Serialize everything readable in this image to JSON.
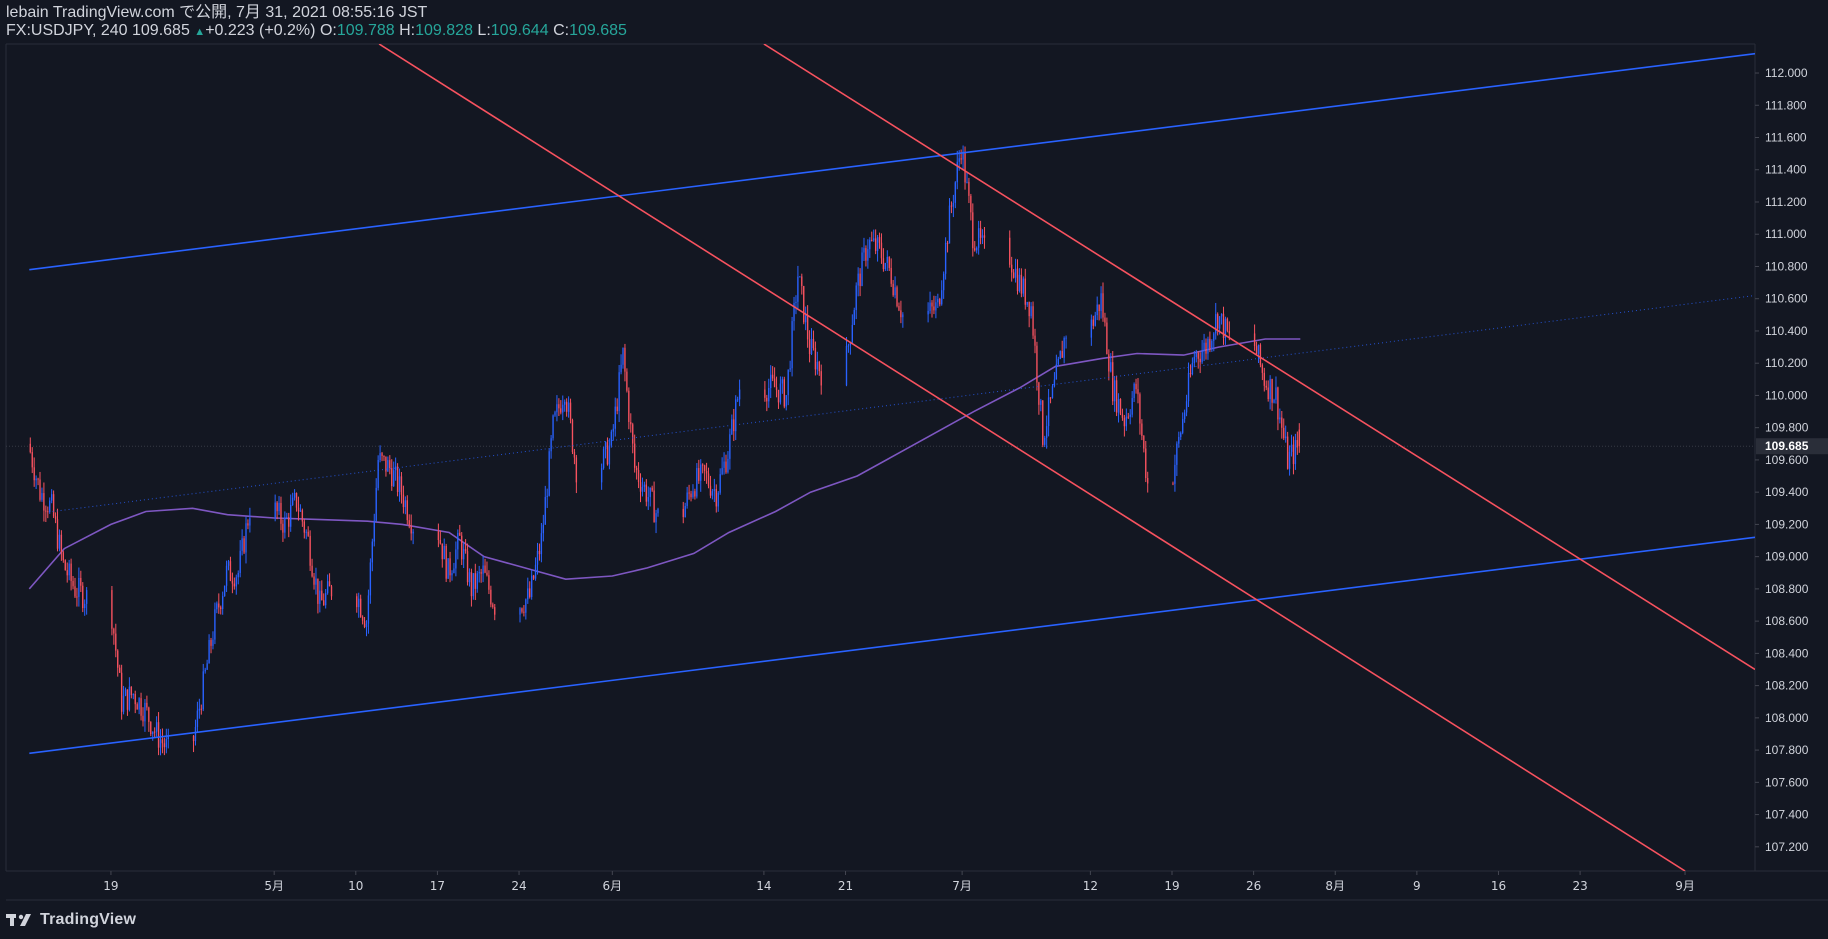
{
  "header": {
    "publish_line": "lebain TradingView.com で公開, 7月 31, 2021 08:55:16 JST",
    "symbol": "FX:USDJPY, 240",
    "last": "109.685",
    "change_arrow": "▲",
    "change": "+0.223 (+0.2%)",
    "o_label": "O:",
    "o_value": "109.788",
    "h_label": "H:",
    "h_value": "109.828",
    "l_label": "L:",
    "l_value": "109.644",
    "c_label": "C:",
    "c_value": "109.685"
  },
  "footer": {
    "logo_text": "TradingView",
    "logo_icon": "tradingview-logo-icon"
  },
  "colors": {
    "background": "#131722",
    "up_candle": "#2962ff",
    "down_candle": "#f7525f",
    "channel": "#2962ff",
    "trend_red": "#f7525f",
    "ma": "#7e57c2",
    "axis_text": "#d1d4dc",
    "price_tag_bg": "#2a2e39",
    "change_up": "#26a69a"
  },
  "chart_data": {
    "type": "candlestick",
    "timeframe": "240",
    "y_axis": {
      "range": [
        107.05,
        112.18
      ],
      "ticks": [
        "107.200",
        "107.400",
        "107.600",
        "107.800",
        "108.000",
        "108.200",
        "108.400",
        "108.600",
        "108.800",
        "109.000",
        "109.200",
        "109.400",
        "109.600",
        "109.800",
        "110.000",
        "110.200",
        "110.400",
        "110.600",
        "110.800",
        "111.000",
        "111.200",
        "111.400",
        "111.600",
        "111.800",
        "112.000"
      ],
      "current_price_label": "109.685",
      "current_price": 109.685
    },
    "x_axis": {
      "labels": [
        {
          "text": "19",
          "date": "2021-04-19"
        },
        {
          "text": "5月",
          "date": "2021-05-03"
        },
        {
          "text": "10",
          "date": "2021-05-10"
        },
        {
          "text": "17",
          "date": "2021-05-17"
        },
        {
          "text": "24",
          "date": "2021-05-24"
        },
        {
          "text": "6月",
          "date": "2021-06-01"
        },
        {
          "text": "14",
          "date": "2021-06-14"
        },
        {
          "text": "21",
          "date": "2021-06-21"
        },
        {
          "text": "7月",
          "date": "2021-07-01"
        },
        {
          "text": "12",
          "date": "2021-07-12"
        },
        {
          "text": "19",
          "date": "2021-07-19"
        },
        {
          "text": "26",
          "date": "2021-07-26"
        },
        {
          "text": "8月",
          "date": "2021-08-02"
        },
        {
          "text": "9",
          "date": "2021-08-09"
        },
        {
          "text": "16",
          "date": "2021-08-16"
        },
        {
          "text": "23",
          "date": "2021-08-23"
        },
        {
          "text": "9月",
          "date": "2021-09-01"
        }
      ]
    },
    "price_path": [
      [
        "2021-04-12",
        109.7
      ],
      [
        "2021-04-13",
        109.4
      ],
      [
        "2021-04-14",
        109.3
      ],
      [
        "2021-04-15",
        108.95
      ],
      [
        "2021-04-16",
        108.8
      ],
      [
        "2021-04-19",
        108.75
      ],
      [
        "2021-04-20",
        108.1
      ],
      [
        "2021-04-21",
        108.15
      ],
      [
        "2021-04-22",
        108.05
      ],
      [
        "2021-04-23",
        107.9
      ],
      [
        "2021-04-26",
        107.8
      ],
      [
        "2021-04-27",
        108.2
      ],
      [
        "2021-04-28",
        108.6
      ],
      [
        "2021-04-29",
        108.9
      ],
      [
        "2021-04-30",
        108.9
      ],
      [
        "2021-05-03",
        109.3
      ],
      [
        "2021-05-04",
        109.2
      ],
      [
        "2021-05-05",
        109.35
      ],
      [
        "2021-05-06",
        109.1
      ],
      [
        "2021-05-07",
        108.7
      ],
      [
        "2021-05-10",
        108.8
      ],
      [
        "2021-05-11",
        108.6
      ],
      [
        "2021-05-12",
        109.6
      ],
      [
        "2021-05-13",
        109.55
      ],
      [
        "2021-05-14",
        109.4
      ],
      [
        "2021-05-17",
        109.2
      ],
      [
        "2021-05-18",
        108.9
      ],
      [
        "2021-05-19",
        109.1
      ],
      [
        "2021-05-20",
        108.8
      ],
      [
        "2021-05-21",
        108.9
      ],
      [
        "2021-05-24",
        108.7
      ],
      [
        "2021-05-25",
        108.75
      ],
      [
        "2021-05-26",
        109.1
      ],
      [
        "2021-05-27",
        109.8
      ],
      [
        "2021-05-28",
        110.05
      ],
      [
        "2021-05-31",
        109.55
      ],
      [
        "2021-06-01",
        109.7
      ],
      [
        "2021-06-02",
        110.25
      ],
      [
        "2021-06-03",
        109.55
      ],
      [
        "2021-06-04",
        109.4
      ],
      [
        "2021-06-07",
        109.25
      ],
      [
        "2021-06-08",
        109.45
      ],
      [
        "2021-06-09",
        109.5
      ],
      [
        "2021-06-10",
        109.4
      ],
      [
        "2021-06-11",
        109.65
      ],
      [
        "2021-06-14",
        110.05
      ],
      [
        "2021-06-15",
        110.05
      ],
      [
        "2021-06-16",
        110.0
      ],
      [
        "2021-06-17",
        110.75
      ],
      [
        "2021-06-18",
        110.3
      ],
      [
        "2021-06-21",
        110.15
      ],
      [
        "2021-06-22",
        110.65
      ],
      [
        "2021-06-23",
        110.95
      ],
      [
        "2021-06-24",
        110.9
      ],
      [
        "2021-06-25",
        110.75
      ],
      [
        "2021-06-28",
        110.5
      ],
      [
        "2021-06-29",
        110.55
      ],
      [
        "2021-06-30",
        111.1
      ],
      [
        "2021-07-01",
        111.55
      ],
      [
        "2021-07-02",
        111.0
      ],
      [
        "2021-07-05",
        110.9
      ],
      [
        "2021-07-06",
        110.7
      ],
      [
        "2021-07-07",
        110.55
      ],
      [
        "2021-07-08",
        109.75
      ],
      [
        "2021-07-09",
        110.05
      ],
      [
        "2021-07-12",
        110.4
      ],
      [
        "2021-07-13",
        110.6
      ],
      [
        "2021-07-14",
        110.05
      ],
      [
        "2021-07-15",
        109.85
      ],
      [
        "2021-07-16",
        110.05
      ],
      [
        "2021-07-19",
        109.45
      ],
      [
        "2021-07-20",
        109.85
      ],
      [
        "2021-07-21",
        110.25
      ],
      [
        "2021-07-22",
        110.3
      ],
      [
        "2021-07-23",
        110.5
      ],
      [
        "2021-07-26",
        110.35
      ],
      [
        "2021-07-27",
        110.1
      ],
      [
        "2021-07-28",
        110.0
      ],
      [
        "2021-07-29",
        109.6
      ],
      [
        "2021-07-30",
        109.685
      ]
    ],
    "moving_average": [
      [
        "2021-04-12",
        108.8
      ],
      [
        "2021-04-15",
        109.05
      ],
      [
        "2021-04-19",
        109.2
      ],
      [
        "2021-04-22",
        109.28
      ],
      [
        "2021-04-26",
        109.3
      ],
      [
        "2021-04-29",
        109.26
      ],
      [
        "2021-05-03",
        109.24
      ],
      [
        "2021-05-07",
        109.23
      ],
      [
        "2021-05-11",
        109.22
      ],
      [
        "2021-05-14",
        109.2
      ],
      [
        "2021-05-18",
        109.15
      ],
      [
        "2021-05-21",
        109.0
      ],
      [
        "2021-05-25",
        108.92
      ],
      [
        "2021-05-28",
        108.86
      ],
      [
        "2021-06-01",
        108.88
      ],
      [
        "2021-06-04",
        108.93
      ],
      [
        "2021-06-08",
        109.02
      ],
      [
        "2021-06-11",
        109.15
      ],
      [
        "2021-06-15",
        109.28
      ],
      [
        "2021-06-18",
        109.4
      ],
      [
        "2021-06-22",
        109.5
      ],
      [
        "2021-06-25",
        109.62
      ],
      [
        "2021-06-29",
        109.78
      ],
      [
        "2021-07-02",
        109.9
      ],
      [
        "2021-07-06",
        110.05
      ],
      [
        "2021-07-09",
        110.18
      ],
      [
        "2021-07-13",
        110.23
      ],
      [
        "2021-07-16",
        110.26
      ],
      [
        "2021-07-20",
        110.25
      ],
      [
        "2021-07-23",
        110.3
      ],
      [
        "2021-07-27",
        110.35
      ],
      [
        "2021-07-30",
        110.35
      ]
    ],
    "trendlines": [
      {
        "id": "channel-upper",
        "kind": "channel",
        "style": "solid",
        "p1": [
          "2021-04-12",
          110.78
        ],
        "p2": [
          "2021-09-07",
          112.12
        ]
      },
      {
        "id": "channel-lower",
        "kind": "channel",
        "style": "solid",
        "p1": [
          "2021-04-12",
          107.78
        ],
        "p2": [
          "2021-09-07",
          109.12
        ]
      },
      {
        "id": "channel-mid",
        "kind": "channel",
        "style": "dotted",
        "p1": [
          "2021-04-14",
          109.28
        ],
        "p2": [
          "2021-09-07",
          110.62
        ]
      },
      {
        "id": "red-upper",
        "kind": "resistance",
        "style": "solid",
        "p1": [
          "2021-06-14",
          112.18
        ],
        "p2": [
          "2021-09-07",
          108.3
        ]
      },
      {
        "id": "red-lower",
        "kind": "support",
        "style": "solid",
        "p1": [
          "2021-05-12",
          112.18
        ],
        "p2": [
          "2021-09-01",
          107.05
        ]
      }
    ]
  }
}
